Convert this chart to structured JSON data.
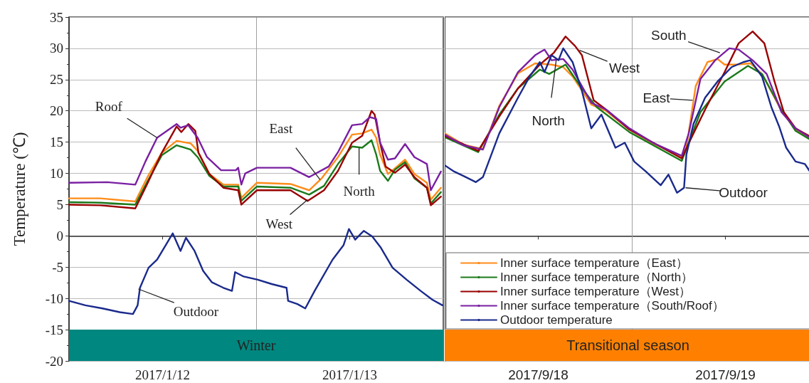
{
  "chart_data": [
    {
      "type": "line",
      "ylabel": "Temperature (℃)",
      "xlim": [
        "2017-01-12T00:00",
        "2017-01-14T00:00"
      ],
      "xticks": [
        {
          "value": "2017-01-12T12:00",
          "label": "2017/1/12"
        },
        {
          "value": "2017-01-13T12:00",
          "label": "2017/1/13"
        }
      ],
      "ylim": [
        -20,
        35
      ],
      "yticks": [
        -20,
        -15,
        -10,
        -5,
        0,
        5,
        10,
        15,
        20,
        25,
        30,
        35
      ],
      "grid": "y",
      "legend": false,
      "marker": "none",
      "line_style": "solid",
      "ref_lines": [
        {
          "axis": "x",
          "value": "2017-01-13T00:00",
          "color": "#a0a0a0"
        }
      ],
      "bands": [
        {
          "axis": "y",
          "from": -20,
          "to": -15,
          "label": "Winter",
          "color": "#00877f"
        }
      ],
      "annotations": [
        {
          "text": "Roof",
          "x": "2017-01-12T11:18",
          "y": 15.7
        },
        {
          "text": "East",
          "x": "2017-01-13T08:12",
          "y": 9.0
        },
        {
          "text": "West",
          "x": "2017-01-13T06:36",
          "y": 5.8
        },
        {
          "text": "North",
          "x": "2017-01-13T13:12",
          "y": 14.1
        },
        {
          "text": "Outdoor",
          "x": "2017-01-12T08:54",
          "y": -8.5
        }
      ],
      "series": [
        {
          "color": "#ff8c1a",
          "x": [
            "2017-01-12T00:00",
            "2017-01-12T04:00",
            "2017-01-12T08:30",
            "2017-01-12T10:06",
            "2017-01-12T11:54",
            "2017-01-12T13:48",
            "2017-01-12T15:36",
            "2017-01-12T16:30",
            "2017-01-12T18:00",
            "2017-01-12T19:48",
            "2017-01-12T21:42",
            "2017-01-12T22:06",
            "2017-01-13T00:06",
            "2017-01-13T04:24",
            "2017-01-13T06:48",
            "2017-01-13T08:24",
            "2017-01-13T10:30",
            "2017-01-13T12:18",
            "2017-01-13T13:36",
            "2017-01-13T14:48",
            "2017-01-13T15:24",
            "2017-01-13T15:54",
            "2017-01-13T16:54",
            "2017-01-13T17:48",
            "2017-01-13T19:06",
            "2017-01-13T20:18",
            "2017-01-13T21:54",
            "2017-01-13T22:24",
            "2017-01-13T23:42"
          ],
          "values": [
            6.0,
            6.0,
            5.5,
            9.5,
            13.3,
            15.2,
            14.8,
            13.6,
            9.9,
            8.2,
            8.2,
            6.1,
            8.5,
            8.3,
            7.3,
            9.2,
            12.6,
            16.2,
            16.4,
            17.0,
            15.7,
            13.0,
            9.9,
            10.8,
            12.2,
            9.9,
            8.5,
            5.8,
            7.7
          ]
        },
        {
          "color": "#1a7a1a",
          "x": [
            "2017-01-12T00:00",
            "2017-01-12T04:00",
            "2017-01-12T08:30",
            "2017-01-12T10:06",
            "2017-01-12T11:54",
            "2017-01-12T13:48",
            "2017-01-12T15:36",
            "2017-01-12T16:30",
            "2017-01-12T18:00",
            "2017-01-12T19:48",
            "2017-01-12T21:42",
            "2017-01-12T22:06",
            "2017-01-13T00:06",
            "2017-01-13T04:24",
            "2017-01-13T06:48",
            "2017-01-13T08:42",
            "2017-01-13T10:30",
            "2017-01-13T12:18",
            "2017-01-13T13:36",
            "2017-01-13T14:48",
            "2017-01-13T15:24",
            "2017-01-13T15:54",
            "2017-01-13T16:54",
            "2017-01-13T17:48",
            "2017-01-13T19:06",
            "2017-01-13T20:18",
            "2017-01-13T21:54",
            "2017-01-13T22:24",
            "2017-01-13T23:42"
          ],
          "values": [
            5.4,
            5.3,
            5.0,
            8.8,
            12.9,
            14.5,
            13.8,
            12.6,
            9.6,
            7.9,
            7.9,
            5.6,
            7.9,
            7.7,
            6.6,
            8.0,
            11.5,
            14.3,
            14.1,
            15.3,
            13.0,
            10.4,
            8.8,
            10.6,
            11.8,
            9.2,
            7.7,
            5.2,
            7.0
          ]
        },
        {
          "color": "#990000",
          "x": [
            "2017-01-12T00:00",
            "2017-01-12T04:00",
            "2017-01-12T08:30",
            "2017-01-12T10:06",
            "2017-01-12T11:54",
            "2017-01-12T13:48",
            "2017-01-12T14:24",
            "2017-01-12T15:18",
            "2017-01-12T16:12",
            "2017-01-12T16:36",
            "2017-01-12T18:00",
            "2017-01-12T19:48",
            "2017-01-12T21:42",
            "2017-01-12T22:06",
            "2017-01-13T00:06",
            "2017-01-13T04:24",
            "2017-01-13T06:36",
            "2017-01-13T08:42",
            "2017-01-13T10:30",
            "2017-01-13T12:18",
            "2017-01-13T13:36",
            "2017-01-13T14:48",
            "2017-01-13T15:12",
            "2017-01-13T15:54",
            "2017-01-13T16:36",
            "2017-01-13T17:48",
            "2017-01-13T19:06",
            "2017-01-13T20:18",
            "2017-01-13T21:54",
            "2017-01-13T22:24",
            "2017-01-13T23:42"
          ],
          "values": [
            5.0,
            4.9,
            4.4,
            8.5,
            13.3,
            17.5,
            16.6,
            17.9,
            16.8,
            13.3,
            9.9,
            7.7,
            7.3,
            5.0,
            7.3,
            7.3,
            5.6,
            7.3,
            10.4,
            14.9,
            16.0,
            20.0,
            19.4,
            14.9,
            11.1,
            10.1,
            11.4,
            9.4,
            7.7,
            4.9,
            6.3
          ]
        },
        {
          "color": "#7a1fa2",
          "x": [
            "2017-01-12T00:00",
            "2017-01-12T04:54",
            "2017-01-12T08:30",
            "2017-01-12T09:48",
            "2017-01-12T11:18",
            "2017-01-12T13:48",
            "2017-01-12T14:18",
            "2017-01-12T15:18",
            "2017-01-12T16:30",
            "2017-01-12T17:42",
            "2017-01-12T19:30",
            "2017-01-12T21:24",
            "2017-01-12T21:42",
            "2017-01-12T22:06",
            "2017-01-12T22:36",
            "2017-01-13T00:06",
            "2017-01-13T04:24",
            "2017-01-13T06:48",
            "2017-01-13T09:18",
            "2017-01-13T10:30",
            "2017-01-13T12:18",
            "2017-01-13T13:36",
            "2017-01-13T14:36",
            "2017-01-13T15:24",
            "2017-01-13T15:54",
            "2017-01-13T16:54",
            "2017-01-13T17:48",
            "2017-01-13T19:06",
            "2017-01-13T20:18",
            "2017-01-13T21:54",
            "2017-01-13T22:24",
            "2017-01-13T23:42"
          ],
          "values": [
            8.5,
            8.6,
            8.2,
            11.9,
            15.7,
            17.9,
            17.3,
            17.7,
            15.7,
            12.6,
            10.5,
            10.5,
            10.9,
            8.2,
            10.0,
            10.9,
            10.9,
            9.4,
            11.1,
            13.4,
            17.7,
            17.9,
            19.0,
            18.7,
            14.9,
            12.2,
            12.4,
            14.7,
            12.6,
            11.5,
            7.3,
            10.3
          ]
        },
        {
          "color": "#1a2a8c",
          "x": [
            "2017-01-12T00:00",
            "2017-01-12T02:06",
            "2017-01-12T04:18",
            "2017-01-12T06:30",
            "2017-01-12T08:12",
            "2017-01-12T08:48",
            "2017-01-12T09:06",
            "2017-01-12T10:12",
            "2017-01-12T11:18",
            "2017-01-12T12:12",
            "2017-01-12T13:18",
            "2017-01-12T14:18",
            "2017-01-12T15:00",
            "2017-01-12T16:06",
            "2017-01-12T17:12",
            "2017-01-12T18:18",
            "2017-01-12T19:48",
            "2017-01-12T20:54",
            "2017-01-12T21:18",
            "2017-01-12T22:24",
            "2017-01-13T00:12",
            "2017-01-13T02:00",
            "2017-01-13T03:54",
            "2017-01-13T04:06",
            "2017-01-13T05:18",
            "2017-01-13T06:18",
            "2017-01-13T07:30",
            "2017-01-13T09:48",
            "2017-01-13T11:12",
            "2017-01-13T11:54",
            "2017-01-13T12:42",
            "2017-01-13T13:48",
            "2017-01-13T14:54",
            "2017-01-13T16:00",
            "2017-01-13T17:30",
            "2017-01-13T19:18",
            "2017-01-13T21:06",
            "2017-01-13T22:36",
            "2017-01-13T23:54"
          ],
          "values": [
            -10.4,
            -11.1,
            -11.6,
            -12.2,
            -12.5,
            -11.1,
            -8.3,
            -5.1,
            -3.8,
            -1.9,
            0.4,
            -2.4,
            -0.3,
            -2.4,
            -5.6,
            -7.4,
            -8.3,
            -8.8,
            -5.8,
            -6.5,
            -7.0,
            -7.7,
            -8.3,
            -10.4,
            -10.9,
            -11.6,
            -8.8,
            -3.8,
            -1.5,
            1.1,
            -0.6,
            0.8,
            -0.1,
            -1.9,
            -5.1,
            -7.0,
            -8.8,
            -10.2,
            -11.1
          ]
        }
      ]
    },
    {
      "type": "line",
      "xlim": [
        "2017-09-18T00:00",
        "2017-09-19T23:00"
      ],
      "xticks": [
        {
          "value": "2017-09-18T12:00",
          "label": "2017/9/18"
        },
        {
          "value": "2017-09-19T12:00",
          "label": "2017/9/19"
        }
      ],
      "ylim": [
        -20,
        35
      ],
      "yticks": [
        -20,
        -15,
        -10,
        -5,
        0,
        5,
        10,
        15,
        20,
        25,
        30,
        35
      ],
      "grid": "y",
      "legend": "bottom",
      "marker": "none",
      "line_style": "solid",
      "tick_labels": "x",
      "ref_lines": [
        {
          "axis": "x",
          "value": "2017-09-19T00:00",
          "color": "#a0a0a0"
        }
      ],
      "bands": [
        {
          "axis": "y",
          "from": -20,
          "to": -15,
          "label": "Transitional season",
          "color": "#ff8000"
        }
      ],
      "annotations": [
        {
          "text": "West",
          "x": "2017-09-18T17:18",
          "y": 29.7
        },
        {
          "text": "North",
          "x": "2017-09-18T14:18",
          "y": 28.1
        },
        {
          "text": "South",
          "x": "2017-09-19T11:18",
          "y": 29.3
        },
        {
          "text": "East",
          "x": "2017-09-19T07:48",
          "y": 21.7
        },
        {
          "text": "Outdoor",
          "x": "2017-09-19T06:54",
          "y": 7.7
        }
      ],
      "series": [
        {
          "name": "Inner surface temperature（East）",
          "color": "#ff8c1a",
          "x": [
            "2017-09-18T00:00",
            "2017-09-18T02:24",
            "2017-09-18T04:54",
            "2017-09-18T07:00",
            "2017-09-18T09:24",
            "2017-09-18T11:36",
            "2017-09-18T13:42",
            "2017-09-18T15:12",
            "2017-09-18T16:24",
            "2017-09-18T18:48",
            "2017-09-18T20:42",
            "2017-09-18T23:42",
            "2017-09-19T02:42",
            "2017-09-19T06:24",
            "2017-09-19T07:00",
            "2017-09-19T08:12",
            "2017-09-19T09:42",
            "2017-09-19T11:00",
            "2017-09-19T11:54",
            "2017-09-19T13:24",
            "2017-09-19T15:12",
            "2017-09-19T16:42",
            "2017-09-19T19:12",
            "2017-09-19T21:00",
            "2017-09-19T23:00"
          ],
          "values": [
            16.4,
            14.6,
            13.9,
            20.8,
            26.0,
            27.6,
            27.4,
            27.0,
            25.5,
            21.0,
            20.0,
            17.0,
            14.8,
            12.7,
            14.1,
            24.0,
            27.8,
            28.3,
            27.4,
            27.4,
            27.6,
            25.9,
            20.0,
            17.0,
            15.5
          ]
        },
        {
          "name": "Inner surface temperature（North）",
          "color": "#1a7a1a",
          "x": [
            "2017-09-18T00:00",
            "2017-09-18T04:18",
            "2017-09-18T07:00",
            "2017-09-18T09:24",
            "2017-09-18T12:12",
            "2017-09-18T13:24",
            "2017-09-18T15:30",
            "2017-09-18T17:36",
            "2017-09-18T19:30",
            "2017-09-18T23:42",
            "2017-09-19T06:24",
            "2017-09-19T07:18",
            "2017-09-19T08:48",
            "2017-09-19T11:54",
            "2017-09-19T14:54",
            "2017-09-19T16:42",
            "2017-09-19T19:12",
            "2017-09-19T21:00",
            "2017-09-19T23:00"
          ],
          "values": [
            15.8,
            13.4,
            19.4,
            23.6,
            26.6,
            25.9,
            27.4,
            23.6,
            20.6,
            16.6,
            12.0,
            14.9,
            19.8,
            24.7,
            27.2,
            25.9,
            20.2,
            16.8,
            15.3
          ]
        },
        {
          "name": "Inner surface temperature（West）",
          "color": "#990000",
          "x": [
            "2017-09-18T00:00",
            "2017-09-18T04:18",
            "2017-09-18T07:00",
            "2017-09-18T09:24",
            "2017-09-18T12:12",
            "2017-09-18T14:00",
            "2017-09-18T15:30",
            "2017-09-18T16:42",
            "2017-09-18T17:36",
            "2017-09-18T19:06",
            "2017-09-18T20:42",
            "2017-09-18T23:42",
            "2017-09-19T06:24",
            "2017-09-19T07:36",
            "2017-09-19T09:24",
            "2017-09-19T11:54",
            "2017-09-19T13:42",
            "2017-09-19T15:30",
            "2017-09-19T17:00",
            "2017-09-19T18:18",
            "2017-09-19T19:30",
            "2017-09-19T21:00",
            "2017-09-19T23:00"
          ],
          "values": [
            16.0,
            13.6,
            19.1,
            23.6,
            27.4,
            29.3,
            31.9,
            30.4,
            28.9,
            21.7,
            20.2,
            17.0,
            12.4,
            15.6,
            20.2,
            26.2,
            30.8,
            32.7,
            30.8,
            24.7,
            19.8,
            17.2,
            15.8
          ]
        },
        {
          "name": "Inner surface temperature（South/Roof）",
          "color": "#7a1fa2",
          "x": [
            "2017-09-18T00:00",
            "2017-09-18T02:24",
            "2017-09-18T04:54",
            "2017-09-18T07:00",
            "2017-09-18T09:24",
            "2017-09-18T11:36",
            "2017-09-18T12:48",
            "2017-09-18T13:42",
            "2017-09-18T15:12",
            "2017-09-18T16:24",
            "2017-09-18T18:48",
            "2017-09-18T20:42",
            "2017-09-18T23:42",
            "2017-09-19T02:42",
            "2017-09-19T06:24",
            "2017-09-19T07:18",
            "2017-09-19T08:48",
            "2017-09-19T10:42",
            "2017-09-19T12:30",
            "2017-09-19T13:42",
            "2017-09-19T15:30",
            "2017-09-19T17:18",
            "2017-09-19T19:12",
            "2017-09-19T21:00",
            "2017-09-19T23:00"
          ],
          "values": [
            16.2,
            14.5,
            13.8,
            20.6,
            26.2,
            28.9,
            29.8,
            28.1,
            28.3,
            26.6,
            21.3,
            20.2,
            17.2,
            14.9,
            12.8,
            16.4,
            25.1,
            28.1,
            30.0,
            29.8,
            28.1,
            25.9,
            19.8,
            17.2,
            15.6
          ]
        },
        {
          "name": "Outdoor temperature",
          "color": "#1a2a8c",
          "x": [
            "2017-09-18T00:00",
            "2017-09-18T01:12",
            "2017-09-18T02:24",
            "2017-09-18T04:00",
            "2017-09-18T04:54",
            "2017-09-18T07:00",
            "2017-09-18T09:24",
            "2017-09-18T10:54",
            "2017-09-18T12:12",
            "2017-09-18T12:48",
            "2017-09-18T13:42",
            "2017-09-18T14:36",
            "2017-09-18T15:12",
            "2017-09-18T16:24",
            "2017-09-18T17:36",
            "2017-09-18T18:48",
            "2017-09-18T20:06",
            "2017-09-18T21:54",
            "2017-09-18T23:06",
            "2017-09-19T00:18",
            "2017-09-19T01:48",
            "2017-09-19T03:42",
            "2017-09-19T04:42",
            "2017-09-19T05:48",
            "2017-09-19T06:42",
            "2017-09-19T07:00",
            "2017-09-19T07:54",
            "2017-09-19T09:24",
            "2017-09-19T11:00",
            "2017-09-19T12:48",
            "2017-09-19T14:18",
            "2017-09-19T15:12",
            "2017-09-19T16:42",
            "2017-09-19T17:54",
            "2017-09-19T18:54",
            "2017-09-19T19:48",
            "2017-09-19T21:00",
            "2017-09-19T22:12",
            "2017-09-19T23:00"
          ],
          "values": [
            11.3,
            10.3,
            9.6,
            8.6,
            9.4,
            16.4,
            22.1,
            25.5,
            27.8,
            26.2,
            28.9,
            28.1,
            30.0,
            27.8,
            23.2,
            17.2,
            19.4,
            14.1,
            14.9,
            11.9,
            10.3,
            8.1,
            9.8,
            6.9,
            7.7,
            13.0,
            17.9,
            22.1,
            24.7,
            27.0,
            27.8,
            28.1,
            25.5,
            20.6,
            17.5,
            14.1,
            11.9,
            11.5,
            10.0
          ]
        }
      ]
    }
  ]
}
